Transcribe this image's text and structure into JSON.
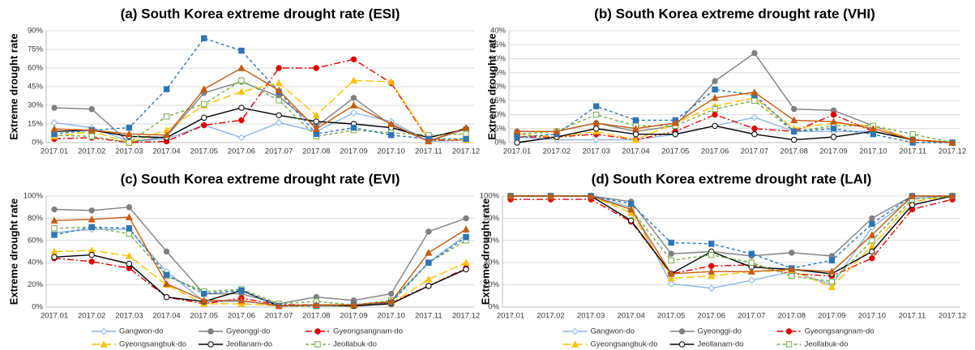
{
  "chart_data": [
    {
      "type": "line",
      "title": "(a)  South Korea extreme drought rate (ESI)",
      "ylabel": "Extreme drought rate",
      "categories": [
        "2017.01",
        "2017.02",
        "2017.03",
        "2017.04",
        "2017.05",
        "2017.06",
        "2017.07",
        "2017.08",
        "2017.09",
        "2017.10",
        "2017.11",
        "2017.12"
      ],
      "ylim": [
        0,
        90
      ],
      "yticks": [
        {
          "value": 0,
          "label": "0%"
        },
        {
          "value": 15,
          "label": "15%"
        },
        {
          "value": 30,
          "label": "30%"
        },
        {
          "value": 45,
          "label": "45%"
        },
        {
          "value": 60,
          "label": "60%"
        },
        {
          "value": 75,
          "label": "75%"
        },
        {
          "value": 90,
          "label": "90%"
        }
      ],
      "grid": true,
      "legend": false,
      "series": [
        {
          "name": "Gangwon-do",
          "color": "#8db4e2",
          "dash": "none",
          "marker": "diamond-open",
          "values": [
            16,
            12,
            1,
            3,
            14,
            4,
            16,
            9,
            24,
            17,
            1,
            2
          ]
        },
        {
          "name": "Gyeonggi-do",
          "color": "#7f7f7f",
          "dash": "none",
          "marker": "circle",
          "values": [
            28,
            27,
            0,
            5,
            40,
            49,
            37,
            13,
            36,
            14,
            1,
            11
          ]
        },
        {
          "name": "Gyeongsangnam-do",
          "color": "#e00000",
          "dash": "8 3 2 3",
          "marker": "circle",
          "values": [
            3,
            4,
            0,
            1,
            14,
            18,
            60,
            60,
            67,
            48,
            2,
            2
          ]
        },
        {
          "name": "Gyeongsangbuk-do",
          "color": "#ffc000",
          "dash": "10 4",
          "marker": "triangle",
          "values": [
            5,
            9,
            0,
            10,
            30,
            41,
            48,
            22,
            50,
            49,
            3,
            2
          ]
        },
        {
          "name": "Jeollanam-do",
          "color": "#000000",
          "dash": "none",
          "marker": "circle-open",
          "values": [
            9,
            10,
            5,
            4,
            20,
            28,
            22,
            17,
            15,
            12,
            4,
            11
          ]
        },
        {
          "name": "Jeollabuk-do",
          "color": "#70ad47",
          "dash": "4 3",
          "marker": "square-open",
          "values": [
            6,
            5,
            0,
            21,
            31,
            50,
            34,
            5,
            10,
            8,
            6,
            7
          ]
        },
        {
          "color": "#2e75b6",
          "dash": "4 3",
          "marker": "square",
          "values": [
            7,
            10,
            12,
            43,
            84,
            74,
            41,
            7,
            12,
            6,
            3,
            3
          ]
        },
        {
          "color": "#c55a11",
          "dash": "none",
          "marker": "triangle",
          "values": [
            11,
            10,
            7,
            6,
            43,
            60,
            42,
            11,
            30,
            15,
            1,
            12
          ]
        }
      ]
    },
    {
      "type": "line",
      "title": "(b)  South Korea extreme drought rate (VHI)",
      "ylabel": "Extreme drought rate",
      "categories": [
        "2017.01",
        "2017.02",
        "2017.03",
        "2017.04",
        "2017.05",
        "2017.06",
        "2017.07",
        "2017.08",
        "2017.09",
        "2017.10",
        "2017.11",
        "2017.12"
      ],
      "ylim": [
        0,
        40
      ],
      "yticks": [
        {
          "value": 0,
          "label": "0%"
        },
        {
          "value": 5,
          "label": "5%"
        },
        {
          "value": 10,
          "label": "10%"
        },
        {
          "value": 15,
          "label": "15%"
        },
        {
          "value": 20,
          "label": "20%"
        },
        {
          "value": 25,
          "label": "25%"
        },
        {
          "value": 30,
          "label": "30%"
        },
        {
          "value": 35,
          "label": "35%"
        },
        {
          "value": 40,
          "label": "40%"
        }
      ],
      "grid": true,
      "legend": false,
      "series": [
        {
          "name": "Gangwon-do",
          "color": "#8db4e2",
          "dash": "none",
          "marker": "diamond-open",
          "values": [
            2,
            1,
            1,
            1,
            3,
            6,
            9,
            4,
            4,
            4,
            1,
            0
          ]
        },
        {
          "name": "Gyeonggi-do",
          "color": "#7f7f7f",
          "dash": "none",
          "marker": "circle",
          "values": [
            4,
            4,
            7,
            4,
            6,
            22,
            32,
            12,
            11.5,
            6,
            1,
            0
          ]
        },
        {
          "name": "Gyeongsangnam-do",
          "color": "#e00000",
          "dash": "8 3 2 3",
          "marker": "circle",
          "values": [
            2,
            2,
            3,
            1,
            4,
            10,
            5,
            4,
            10,
            4,
            1,
            0
          ]
        },
        {
          "name": "Gyeongsangbuk-do",
          "color": "#ffc000",
          "dash": "10 4",
          "marker": "triangle",
          "values": [
            3,
            2,
            4,
            1,
            7,
            13,
            16,
            5,
            7,
            6,
            1,
            0
          ]
        },
        {
          "name": "Jeollanam-do",
          "color": "#000000",
          "dash": "none",
          "marker": "circle-open",
          "values": [
            0,
            2,
            5,
            3,
            3,
            6,
            3,
            1,
            2,
            4,
            1,
            0
          ]
        },
        {
          "name": "Jeollabuk-do",
          "color": "#70ad47",
          "dash": "4 3",
          "marker": "square-open",
          "values": [
            3,
            4,
            10,
            6,
            6,
            12,
            15,
            4,
            6,
            6,
            3,
            0
          ]
        },
        {
          "color": "#2e75b6",
          "dash": "4 3",
          "marker": "square",
          "values": [
            2,
            3,
            13,
            8,
            8,
            19,
            17,
            4,
            5,
            3,
            0,
            0
          ]
        },
        {
          "color": "#c55a11",
          "dash": "none",
          "marker": "triangle",
          "values": [
            4,
            4,
            7,
            5,
            7,
            16,
            18,
            8,
            7.5,
            5,
            1,
            0
          ]
        }
      ]
    },
    {
      "type": "line",
      "title": "(c)  South Korea extreme drought rate (EVI)",
      "ylabel": "Extreme drought rate",
      "categories": [
        "2017.01",
        "2017.02",
        "2017.03",
        "2017.04",
        "2017.05",
        "2017.06",
        "2017.07",
        "2017.08",
        "2017.09",
        "2017.10",
        "2017.11",
        "2017.12"
      ],
      "ylim": [
        0,
        100
      ],
      "yticks": [
        {
          "value": 0,
          "label": "0%"
        },
        {
          "value": 20,
          "label": "20%"
        },
        {
          "value": 40,
          "label": "40%"
        },
        {
          "value": 60,
          "label": "60%"
        },
        {
          "value": 80,
          "label": "80%"
        },
        {
          "value": 100,
          "label": "100%"
        }
      ],
      "grid": true,
      "legend": "bottom",
      "series": [
        {
          "name": "Gangwon-do",
          "color": "#8db4e2",
          "dash": "none",
          "marker": "diamond-open",
          "values": [
            67,
            70,
            70,
            32,
            5,
            5,
            2,
            1,
            1,
            5,
            40,
            65
          ]
        },
        {
          "name": "Gyeonggi-do",
          "color": "#7f7f7f",
          "dash": "none",
          "marker": "circle",
          "values": [
            88,
            87,
            90,
            50,
            12,
            12,
            3,
            9,
            6,
            12,
            68,
            80
          ]
        },
        {
          "name": "Gyeongsangnam-do",
          "color": "#e00000",
          "dash": "8 3 2 3",
          "marker": "circle",
          "values": [
            44,
            41,
            35,
            9,
            3,
            8,
            2,
            2,
            1,
            4,
            19,
            35
          ]
        },
        {
          "name": "Gyeongsangbuk-do",
          "color": "#ffc000",
          "dash": "10 4",
          "marker": "triangle",
          "values": [
            50,
            51,
            46,
            20,
            3,
            3,
            1,
            1,
            1,
            3,
            25,
            40
          ]
        },
        {
          "name": "Jeollanam-do",
          "color": "#000000",
          "dash": "none",
          "marker": "circle-open",
          "values": [
            45,
            47,
            39,
            9,
            5,
            15,
            1,
            2,
            1,
            3,
            19,
            34
          ]
        },
        {
          "name": "Jeollabuk-do",
          "color": "#70ad47",
          "dash": "4 3",
          "marker": "square-open",
          "values": [
            71,
            72,
            66,
            28,
            14,
            16,
            3,
            5,
            2,
            6,
            40,
            60
          ]
        },
        {
          "color": "#2e75b6",
          "dash": "4 3",
          "marker": "square",
          "values": [
            65,
            72,
            71,
            29,
            12,
            15,
            1,
            1,
            2,
            4,
            40,
            63
          ]
        },
        {
          "color": "#c55a11",
          "dash": "none",
          "marker": "triangle",
          "values": [
            78,
            79,
            81,
            21,
            6,
            6,
            1,
            2,
            2,
            5,
            49,
            70
          ]
        }
      ]
    },
    {
      "type": "line",
      "title": "(d)  South Korea extreme drought rate (LAI)",
      "ylabel": "Extreme drought rate",
      "categories": [
        "2017.01",
        "2017.02",
        "2017.03",
        "2017.04",
        "2017.05",
        "2017.06",
        "2017.07",
        "2017.08",
        "2017.09",
        "2017.10",
        "2017.11",
        "2017.12"
      ],
      "ylim": [
        0,
        100
      ],
      "yticks": [
        {
          "value": 0,
          "label": "0%"
        },
        {
          "value": 20,
          "label": "20%"
        },
        {
          "value": 40,
          "label": "40%"
        },
        {
          "value": 60,
          "label": "60%"
        },
        {
          "value": 80,
          "label": "80%"
        },
        {
          "value": 100,
          "label": "100%"
        }
      ],
      "grid": true,
      "legend": "bottom",
      "series": [
        {
          "name": "Gangwon-do",
          "color": "#8db4e2",
          "dash": "none",
          "marker": "diamond-open",
          "values": [
            100,
            100,
            100,
            90,
            21,
            17,
            24,
            32,
            20,
            72,
            98,
            100
          ]
        },
        {
          "name": "Gyeonggi-do",
          "color": "#7f7f7f",
          "dash": "none",
          "marker": "circle",
          "values": [
            100,
            100,
            100,
            95,
            48,
            50,
            46,
            49,
            46,
            80,
            100,
            100
          ]
        },
        {
          "name": "Gyeongsangnam-do",
          "color": "#e00000",
          "dash": "8 3 2 3",
          "marker": "circle",
          "values": [
            97,
            97,
            97,
            77,
            30,
            37,
            38,
            30,
            28,
            44,
            88,
            97
          ]
        },
        {
          "name": "Gyeongsangbuk-do",
          "color": "#ffc000",
          "dash": "10 4",
          "marker": "triangle",
          "values": [
            100,
            100,
            100,
            85,
            26,
            28,
            32,
            33,
            18,
            55,
            95,
            100
          ]
        },
        {
          "name": "Jeollanam-do",
          "color": "#000000",
          "dash": "none",
          "marker": "circle-open",
          "values": [
            100,
            100,
            100,
            78,
            30,
            50,
            36,
            34,
            30,
            50,
            92,
            100
          ]
        },
        {
          "name": "Jeollabuk-do",
          "color": "#70ad47",
          "dash": "4 3",
          "marker": "square-open",
          "values": [
            100,
            100,
            100,
            88,
            42,
            47,
            40,
            28,
            23,
            60,
            97,
            100
          ]
        },
        {
          "color": "#2e75b6",
          "dash": "4 3",
          "marker": "square",
          "values": [
            100,
            100,
            100,
            93,
            58,
            57,
            48,
            35,
            42,
            75,
            100,
            100
          ]
        },
        {
          "color": "#c55a11",
          "dash": "none",
          "marker": "triangle",
          "values": [
            100,
            100,
            100,
            88,
            30,
            32,
            32,
            34,
            32,
            65,
            100,
            100
          ]
        }
      ]
    }
  ]
}
